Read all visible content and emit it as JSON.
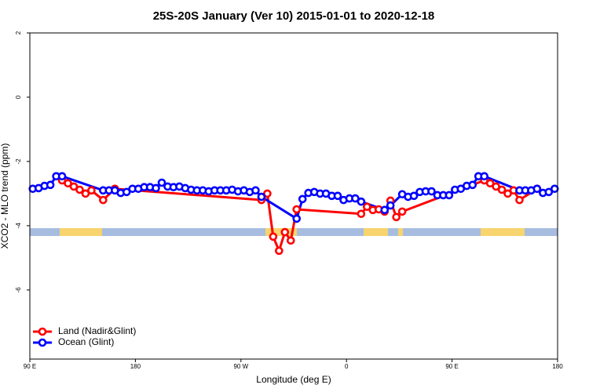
{
  "chart_data": {
    "type": "line",
    "title": "25S-20S January (Ver 10)   2015-01-01 to 2020-12-18",
    "xlabel": "Longitude (deg E)",
    "ylabel": "XCO2 - MLO trend (ppm)",
    "xlim": [
      90,
      540
    ],
    "ylim": [
      -8.15,
      2
    ],
    "xticks": [
      {
        "value": 90,
        "label": "90 E"
      },
      {
        "value": 180,
        "label": "180"
      },
      {
        "value": 270,
        "label": "90 W"
      },
      {
        "value": 360,
        "label": "0"
      },
      {
        "value": 450,
        "label": "90 E"
      },
      {
        "value": 540,
        "label": "180"
      }
    ],
    "yticks": [
      2,
      0,
      -2,
      -4,
      -6
    ],
    "legend": "bottom-left",
    "series": [
      {
        "name": "Land (Nadir&Glint)",
        "color": "#ff0000",
        "x": [
          117.5,
          122.5,
          127.5,
          132.5,
          137.5,
          142.5,
          152.5,
          162.5,
          287.5,
          292.5,
          297.5,
          302.5,
          307.5,
          312.5,
          317.5,
          372.5,
          377.5,
          382.5,
          387.5,
          392.5,
          397.5,
          402.5,
          407.5,
          477.5,
          482.5,
          487.5,
          492.5,
          497.5,
          502.5,
          507.5,
          522.5
        ],
        "values": [
          -2.59,
          -2.68,
          -2.78,
          -2.88,
          -3.0,
          -2.9,
          -3.2,
          -2.85,
          -3.2,
          -3.0,
          -4.34,
          -4.78,
          -4.2,
          -4.46,
          -3.49,
          -3.63,
          -3.41,
          -3.51,
          -3.49,
          -3.56,
          -3.22,
          -3.73,
          -3.56,
          -2.59,
          -2.68,
          -2.78,
          -2.88,
          -3.0,
          -2.9,
          -3.2,
          -2.85
        ]
      },
      {
        "name": "Ocean (Glint)",
        "color": "#0000ff",
        "x": [
          92.5,
          97.5,
          102.5,
          107.5,
          112.5,
          117.5,
          152.5,
          157.5,
          162.5,
          167.5,
          172.5,
          177.5,
          182.5,
          187.5,
          192.5,
          197.5,
          202.5,
          207.5,
          212.5,
          217.5,
          222.5,
          227.5,
          232.5,
          237.5,
          242.5,
          247.5,
          252.5,
          257.5,
          262.5,
          267.5,
          272.5,
          277.5,
          282.5,
          287.5,
          317.5,
          322.5,
          327.5,
          332.5,
          337.5,
          342.5,
          347.5,
          352.5,
          357.5,
          362.5,
          367.5,
          372.5,
          392.5,
          397.5,
          407.5,
          412.5,
          417.5,
          422.5,
          427.5,
          432.5,
          437.5,
          442.5,
          447.5,
          452.5,
          457.5,
          462.5,
          467.5,
          472.5,
          477.5,
          507.5,
          512.5,
          517.5,
          522.5,
          527.5,
          532.5,
          537.5
        ],
        "values": [
          -2.85,
          -2.83,
          -2.76,
          -2.73,
          -2.46,
          -2.46,
          -2.9,
          -2.9,
          -2.9,
          -2.98,
          -2.95,
          -2.85,
          -2.85,
          -2.8,
          -2.8,
          -2.83,
          -2.66,
          -2.78,
          -2.8,
          -2.78,
          -2.83,
          -2.88,
          -2.9,
          -2.9,
          -2.93,
          -2.9,
          -2.9,
          -2.9,
          -2.88,
          -2.93,
          -2.9,
          -2.95,
          -2.9,
          -3.1,
          -3.78,
          -3.17,
          -2.98,
          -2.95,
          -3.0,
          -3.0,
          -3.07,
          -3.07,
          -3.2,
          -3.15,
          -3.15,
          -3.25,
          -3.51,
          -3.37,
          -3.02,
          -3.1,
          -3.07,
          -2.95,
          -2.93,
          -2.93,
          -3.05,
          -3.05,
          -3.05,
          -2.88,
          -2.85,
          -2.76,
          -2.73,
          -2.46,
          -2.46,
          -2.9,
          -2.9,
          -2.9,
          -2.85,
          -2.98,
          -2.95,
          -2.85
        ]
      }
    ]
  }
}
